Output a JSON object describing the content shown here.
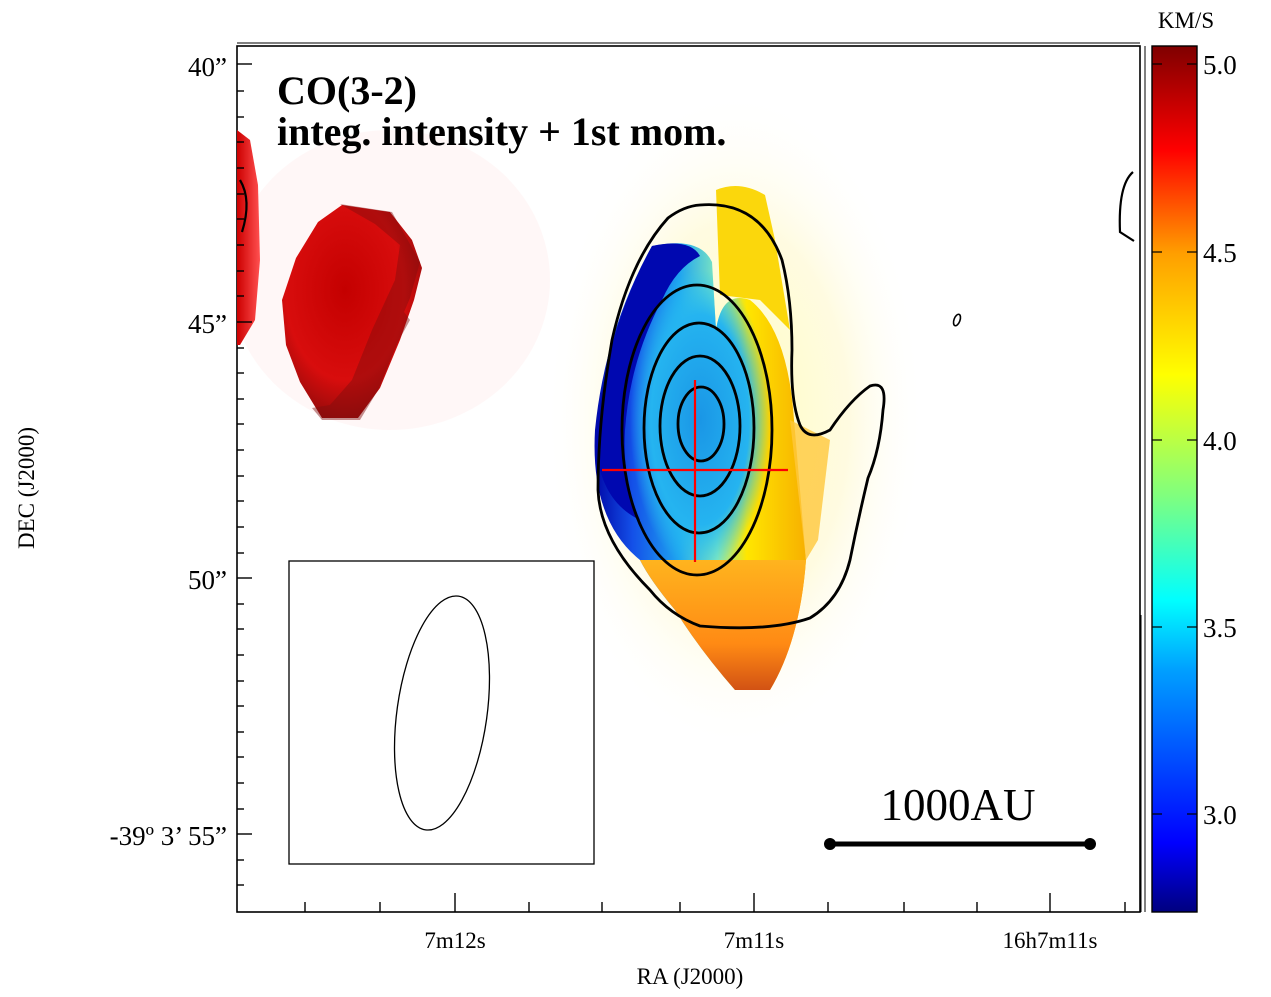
{
  "chart_data": {
    "type": "heatmap",
    "title": "CO(3-2)",
    "subtitle": "integ. intensity + 1st mom.",
    "xlabel": "RA (J2000)",
    "ylabel": "DEC (J2000)",
    "x_tick_labels": [
      "7m12s",
      "7m11s",
      "16h7m11s"
    ],
    "y_tick_labels": [
      "40”",
      "45”",
      "50”",
      "-39º 3’ 55”"
    ],
    "colorbar": {
      "unit": "KM/S",
      "ticks": [
        "5.0",
        "4.5",
        "4.0",
        "3.5",
        "3.0"
      ],
      "range": [
        2.72,
        5.07
      ],
      "colormap": [
        "#00007f",
        "#0000ff",
        "#00a0ff",
        "#00ffff",
        "#7fff7f",
        "#ffff00",
        "#ff9f00",
        "#ff0000",
        "#7f0000"
      ]
    },
    "contours": "integrated intensity",
    "scale_bar": {
      "label": "1000AU"
    },
    "beam": "ellipse",
    "marker": "cross",
    "colors": {
      "contour": "#000000",
      "marker": "#ff0000"
    }
  }
}
